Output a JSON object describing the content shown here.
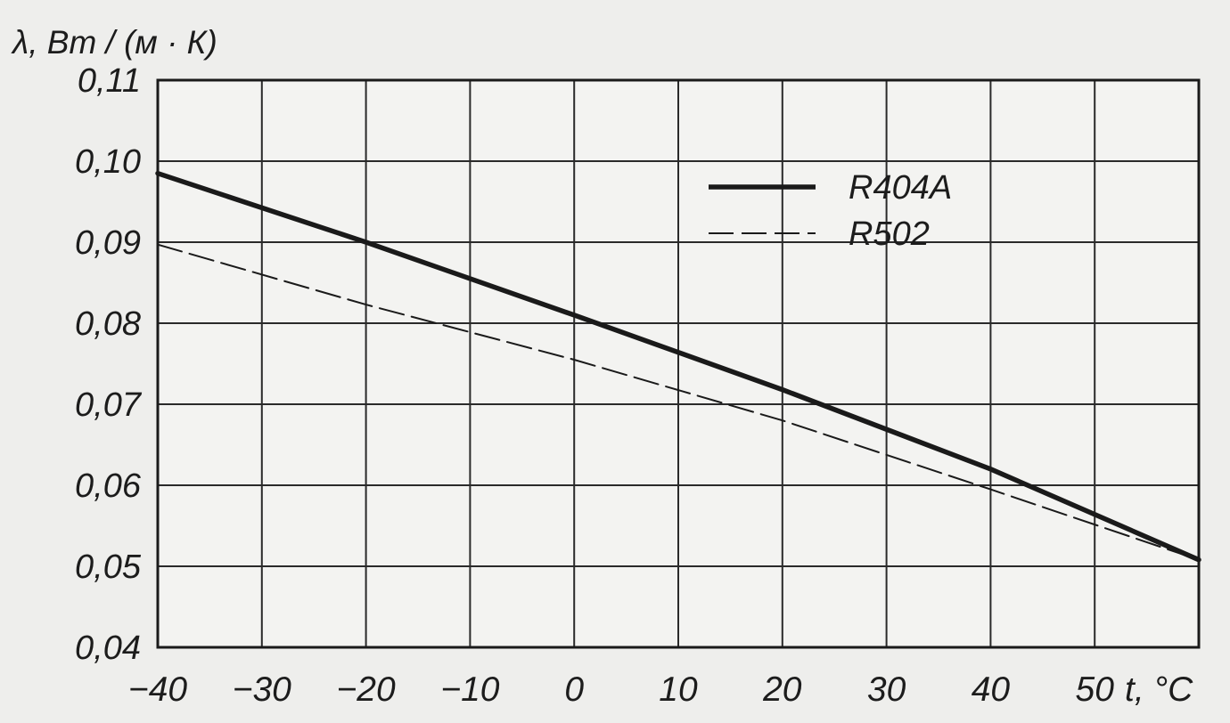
{
  "chart_data": {
    "type": "line",
    "title": "",
    "ylabel": "λ, Вт / (м · К)",
    "xlabel": "t, °C",
    "xlim": [
      -40,
      60
    ],
    "ylim": [
      0.04,
      0.11
    ],
    "x_ticks": [
      -40,
      -30,
      -20,
      -10,
      0,
      10,
      20,
      30,
      40,
      50
    ],
    "x_tick_labels": [
      "−40",
      "−30",
      "−20",
      "−10",
      "0",
      "10",
      "20",
      "30",
      "40",
      "50"
    ],
    "y_ticks": [
      0.04,
      0.05,
      0.06,
      0.07,
      0.08,
      0.09,
      0.1,
      0.11
    ],
    "y_tick_labels": [
      "0,04",
      "0,05",
      "0,06",
      "0,07",
      "0,08",
      "0,09",
      "0,10",
      "0,11"
    ],
    "grid": true,
    "legend_position": "top-right",
    "series": [
      {
        "name": "R404A",
        "style": "solid-thick",
        "color": "#1a1a1a",
        "x": [
          -40,
          -20,
          0,
          20,
          40,
          60
        ],
        "y": [
          0.0985,
          0.09,
          0.081,
          0.0718,
          0.062,
          0.0508
        ]
      },
      {
        "name": "R502",
        "style": "dashed-thin",
        "color": "#1a1a1a",
        "x": [
          -40,
          -20,
          0,
          20,
          40,
          60
        ],
        "y": [
          0.0897,
          0.0823,
          0.0755,
          0.068,
          0.0595,
          0.0508
        ]
      }
    ]
  }
}
